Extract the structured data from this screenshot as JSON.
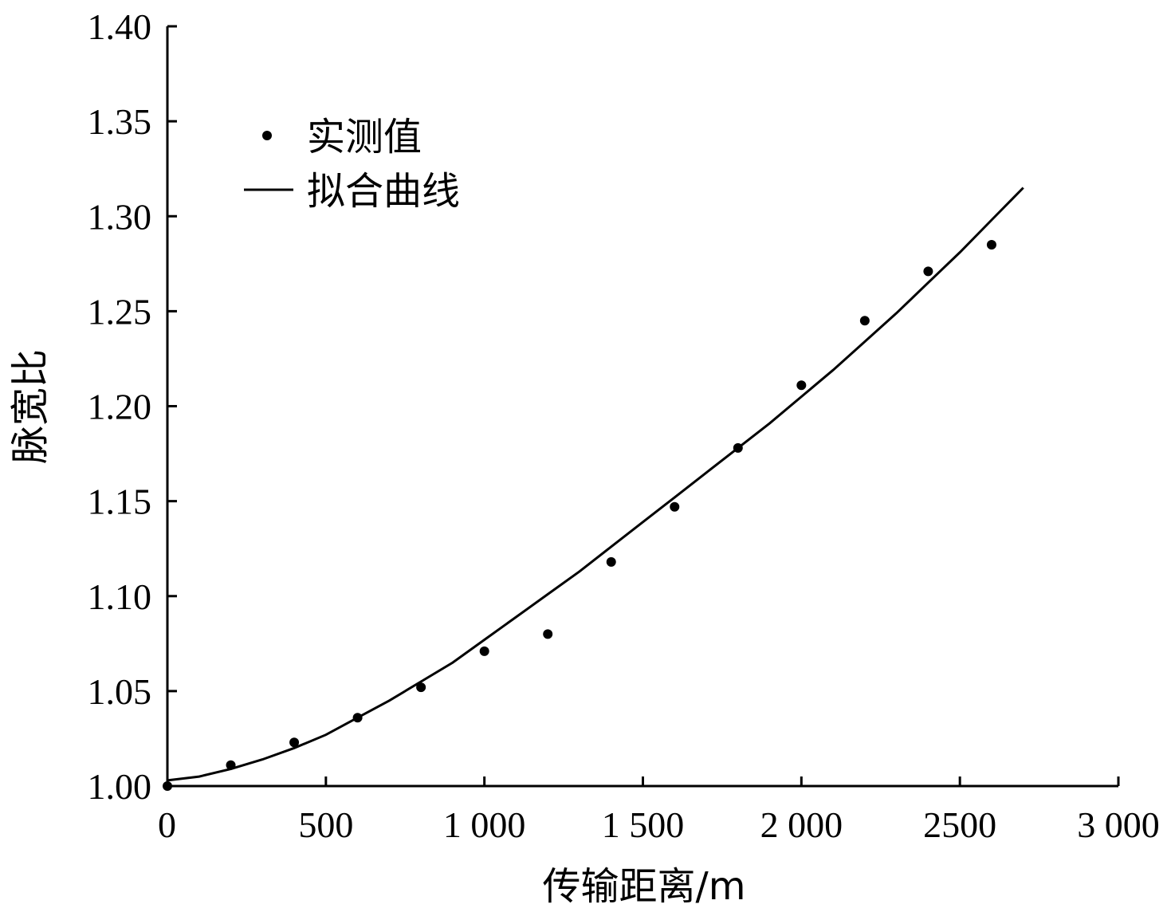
{
  "chart_data": {
    "type": "scatter",
    "xlabel": "传输距离/m",
    "ylabel": "脉宽比",
    "xlim": [
      0,
      3000
    ],
    "ylim": [
      1.0,
      1.4
    ],
    "x_ticks": [
      0,
      500,
      1000,
      1500,
      2000,
      2500,
      3000
    ],
    "x_tick_labels": [
      "0",
      "500",
      "1 000",
      "1 500",
      "2 000",
      "2500",
      "3 000"
    ],
    "y_ticks": [
      1.0,
      1.05,
      1.1,
      1.15,
      1.2,
      1.25,
      1.3,
      1.35,
      1.4
    ],
    "y_tick_labels": [
      "1.00",
      "1.05",
      "1.10",
      "1.15",
      "1.20",
      "1.25",
      "1.30",
      "1.35",
      "1.40"
    ],
    "legend": {
      "placement": "top-left",
      "measured_label": "实测值",
      "fit_label": "拟合曲线"
    },
    "series": [
      {
        "name": "实测值",
        "kind": "points",
        "x": [
          0,
          200,
          400,
          600,
          800,
          1000,
          1200,
          1400,
          1600,
          1800,
          2000,
          2200,
          2400,
          2600
        ],
        "y": [
          1.0,
          1.011,
          1.023,
          1.036,
          1.052,
          1.071,
          1.08,
          1.118,
          1.147,
          1.178,
          1.211,
          1.245,
          1.271,
          1.285
        ]
      },
      {
        "name": "拟合曲线",
        "kind": "line",
        "x": [
          0,
          100,
          200,
          300,
          400,
          500,
          600,
          700,
          800,
          900,
          1000,
          1100,
          1200,
          1300,
          1400,
          1500,
          1600,
          1700,
          1800,
          1900,
          2000,
          2100,
          2200,
          2300,
          2400,
          2500,
          2600,
          2700
        ],
        "y": [
          1.003,
          1.005,
          1.009,
          1.014,
          1.02,
          1.027,
          1.036,
          1.045,
          1.055,
          1.065,
          1.077,
          1.089,
          1.101,
          1.113,
          1.126,
          1.139,
          1.152,
          1.165,
          1.178,
          1.191,
          1.205,
          1.219,
          1.234,
          1.249,
          1.265,
          1.281,
          1.298,
          1.315
        ]
      }
    ]
  }
}
